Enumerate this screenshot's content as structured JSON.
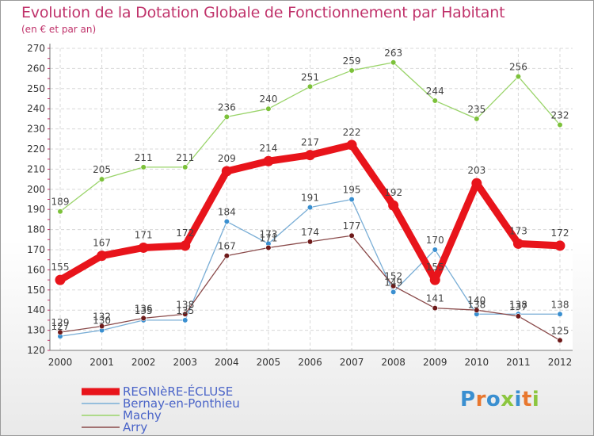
{
  "header": {
    "title": "Evolution de la Dotation Globale de Fonctionnement par Habitant",
    "subtitle": "(en € et par an)"
  },
  "logo": {
    "text": "Proxiti",
    "letter_colors": [
      "#3a8fd0",
      "#e8772e",
      "#3a8fd0",
      "#8cc63f",
      "#3a8fd0",
      "#e8772e",
      "#8cc63f"
    ]
  },
  "chart_data": {
    "type": "line",
    "title": "Evolution de la Dotation Globale de Fonctionnement par Habitant",
    "subtitle": "(en € et par an)",
    "xlabel": "",
    "ylabel": "",
    "x": [
      "2000",
      "2001",
      "2002",
      "2003",
      "2004",
      "2005",
      "2006",
      "2007",
      "2008",
      "2009",
      "2010",
      "2011",
      "2012"
    ],
    "ylim": [
      120,
      270
    ],
    "yticks": [
      120,
      130,
      140,
      150,
      160,
      170,
      180,
      190,
      200,
      210,
      220,
      230,
      240,
      250,
      260,
      270
    ],
    "grid": true,
    "legend_position": "bottom-left",
    "series": [
      {
        "name": "REGNIèRE-ÉCLUSE",
        "color": "#e8141b",
        "marker_color": "#e8141b",
        "emphasis": "thick",
        "values": [
          155,
          167,
          171,
          172,
          209,
          214,
          217,
          222,
          192,
          155,
          203,
          173,
          172
        ],
        "labels": [
          "155",
          "167",
          "171",
          "172",
          "209",
          "214",
          "217",
          "222",
          "192",
          "155",
          "203",
          "173",
          "172"
        ]
      },
      {
        "name": "Bernay-en-Ponthieu",
        "color": "#7aaed6",
        "marker_color": "#3a8fd0",
        "emphasis": "thin",
        "values": [
          127,
          130,
          135,
          135,
          184,
          173,
          191,
          195,
          149,
          170,
          138,
          138,
          138
        ],
        "labels": [
          "127",
          "130",
          "135",
          "135",
          "184",
          "173",
          "191",
          "195",
          "149",
          "170",
          "138",
          "138",
          "138"
        ]
      },
      {
        "name": "Machy",
        "color": "#9ad46a",
        "marker_color": "#7cc13a",
        "emphasis": "thin",
        "values": [
          189,
          205,
          211,
          211,
          236,
          240,
          251,
          259,
          263,
          244,
          235,
          256,
          232
        ],
        "labels": [
          "189",
          "205",
          "211",
          "211",
          "236",
          "240",
          "251",
          "259",
          "263",
          "244",
          "235",
          "256",
          "232"
        ]
      },
      {
        "name": "Arry",
        "color": "#8a4a4a",
        "marker_color": "#6e1a1a",
        "emphasis": "thin",
        "values": [
          129,
          132,
          136,
          138,
          167,
          171,
          174,
          177,
          152,
          141,
          140,
          137,
          125
        ],
        "labels": [
          "129",
          "132",
          "136",
          "138",
          "167",
          "171",
          "174",
          "177",
          "152",
          "141",
          "140",
          "137",
          "125"
        ]
      }
    ]
  }
}
